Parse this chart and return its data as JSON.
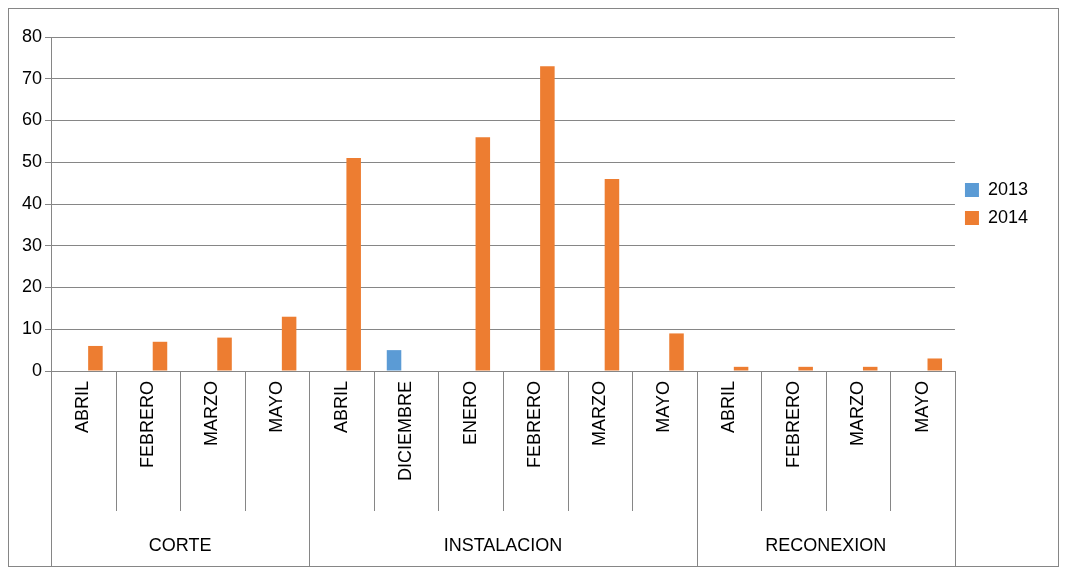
{
  "chart_data": {
    "type": "bar",
    "categories": [
      "ABRIL",
      "FEBRERO",
      "MARZO",
      "MAYO",
      "ABRIL",
      "DICIEMBRE",
      "ENERO",
      "FEBRERO",
      "MARZO",
      "MAYO",
      "ABRIL",
      "FEBRERO",
      "MARZO",
      "MAYO"
    ],
    "series": [
      {
        "name": "2013",
        "color": "#5b9bd5",
        "values": [
          null,
          null,
          null,
          null,
          null,
          5,
          null,
          null,
          null,
          null,
          null,
          null,
          null,
          null
        ]
      },
      {
        "name": "2014",
        "color": "#ed7d31",
        "values": [
          6,
          7,
          8,
          13,
          51,
          null,
          56,
          73,
          46,
          9,
          1,
          1,
          1,
          3
        ]
      }
    ],
    "annotations": [
      "CORTE",
      "INSTALACION",
      "RECONEXION"
    ],
    "ylim": [
      0,
      80
    ],
    "yticks": [
      0,
      10,
      20,
      30,
      40,
      50,
      60,
      70,
      80
    ],
    "grid": "y",
    "legend": "right"
  }
}
